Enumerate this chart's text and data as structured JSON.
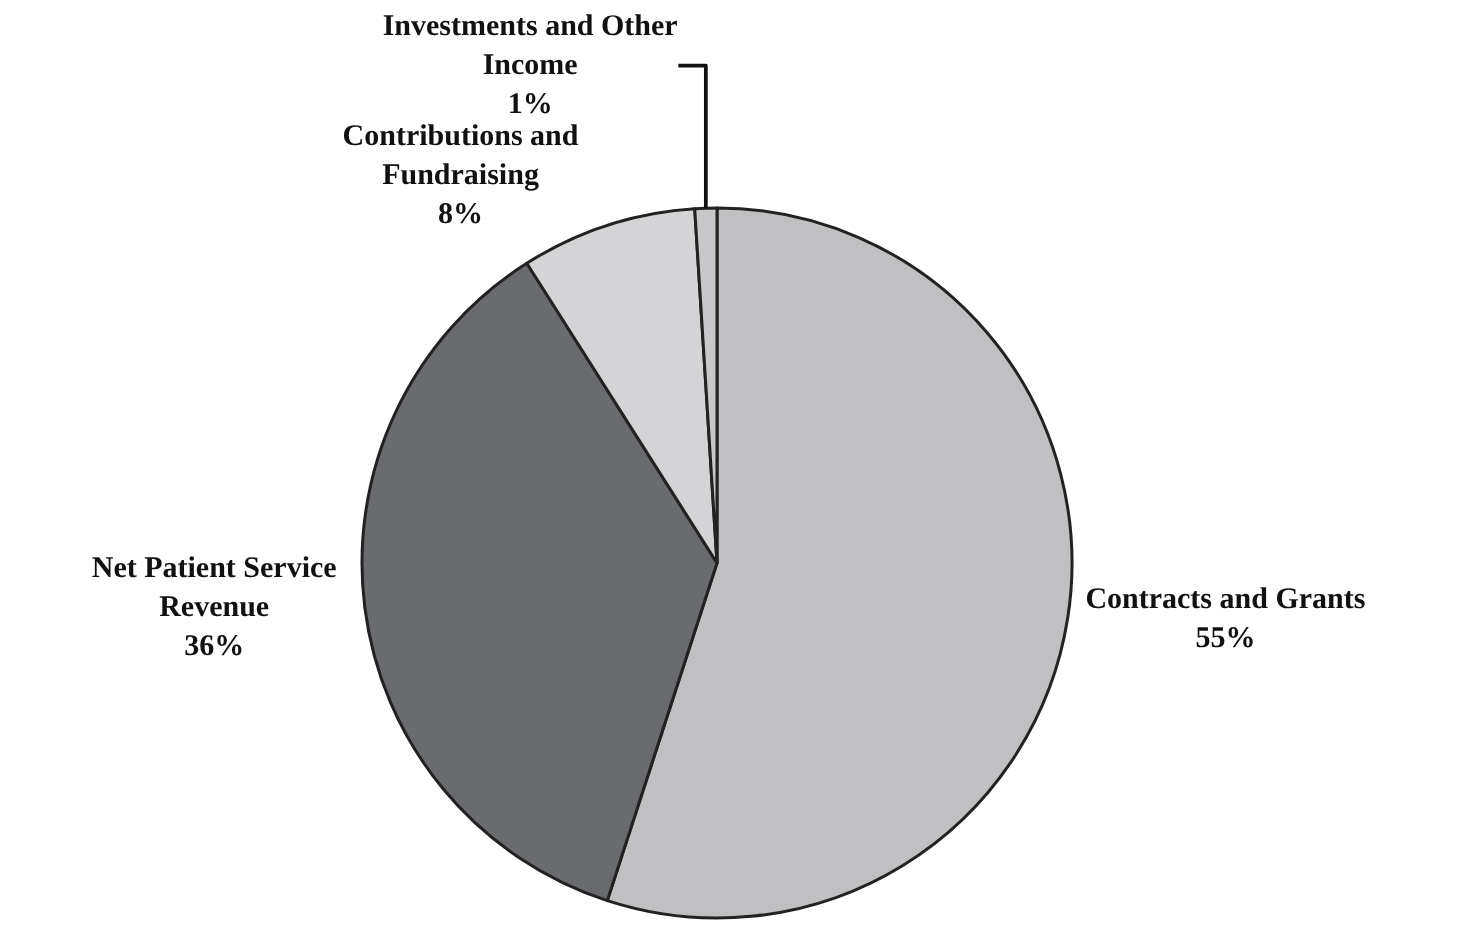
{
  "chart_data": {
    "type": "pie",
    "categories": [
      "Contracts and Grants",
      "Net Patient Service Revenue",
      "Contributions and Fundraising",
      "Investments and Other Income"
    ],
    "values": [
      55,
      36,
      8,
      1
    ],
    "value_labels": [
      "55%",
      "36%",
      "8%",
      "1%"
    ],
    "colors": [
      "#c0c0c2",
      "#6a6b6e",
      "#d4d4d6",
      "#c8c8ca"
    ],
    "legend": false
  }
}
